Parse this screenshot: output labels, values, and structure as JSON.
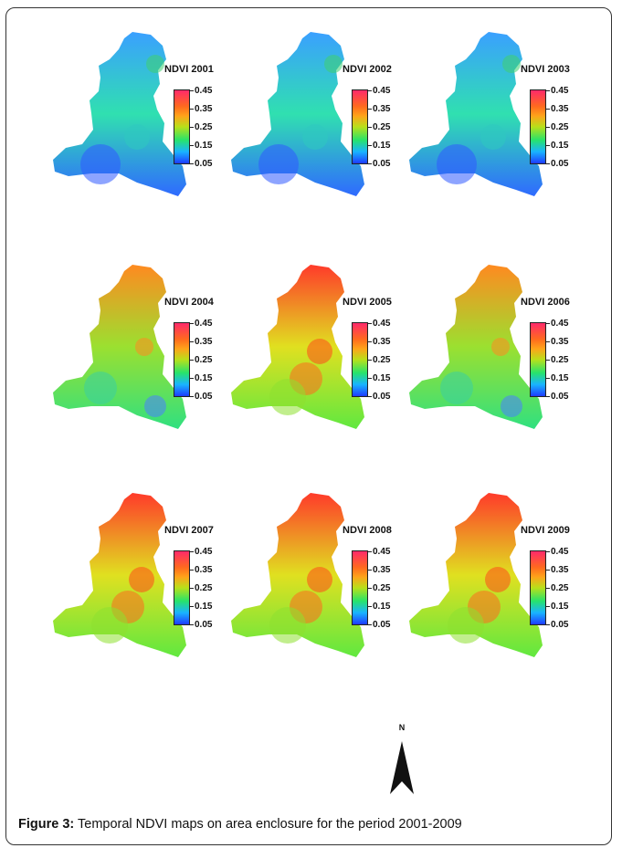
{
  "panels": [
    {
      "title": "NDVI 2001",
      "green_bias": 0.25
    },
    {
      "title": "NDVI 2002",
      "green_bias": 0.22
    },
    {
      "title": "NDVI 2003",
      "green_bias": 0.3
    },
    {
      "title": "NDVI 2004",
      "green_bias": 0.42
    },
    {
      "title": "NDVI 2005",
      "green_bias": 0.55
    },
    {
      "title": "NDVI 2006",
      "green_bias": 0.45
    },
    {
      "title": "NDVI 2007",
      "green_bias": 0.62
    },
    {
      "title": "NDVI 2008",
      "green_bias": 0.66
    },
    {
      "title": "NDVI 2009",
      "green_bias": 0.64
    }
  ],
  "legend": {
    "ticks": [
      "0.45",
      "0.35",
      "0.25",
      "0.15",
      "0.05"
    ],
    "colors": [
      "#ff2a6a",
      "#ff6a1e",
      "#ffa31a",
      "#b8e01a",
      "#28e36a",
      "#19b4ff",
      "#1e3cff"
    ]
  },
  "north_label": "N",
  "caption": {
    "label": "Figure 3:",
    "text": " Temporal NDVI maps on area enclosure for the period 2001-2009"
  }
}
